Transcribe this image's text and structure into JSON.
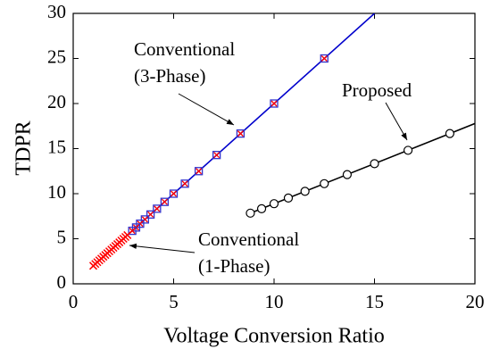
{
  "chart_data": {
    "type": "scatter",
    "xlabel": "Voltage Conversion Ratio",
    "ylabel": "TDPR",
    "xlim": [
      0,
      20
    ],
    "ylim": [
      0,
      30
    ],
    "xticks": [
      0,
      5,
      10,
      15,
      20
    ],
    "yticks": [
      0,
      5,
      10,
      15,
      20,
      25,
      30
    ],
    "series": [
      {
        "color": "#0000cc",
        "marker": "line",
        "x": [
          2.8,
          15
        ],
        "values": [
          5.6,
          30
        ]
      },
      {
        "color": "#000000",
        "marker": "line",
        "x": [
          8.8,
          20
        ],
        "values": [
          7.82,
          17.78
        ]
      },
      {
        "color": "#3333cc",
        "marker": "square-x",
        "x": [
          12.5,
          10,
          8.33,
          7.14,
          6.25,
          5.56,
          5,
          4.55,
          4.17,
          3.85,
          3.57,
          3.33,
          3.13,
          2.94
        ],
        "values": [
          25,
          20,
          16.67,
          14.29,
          12.5,
          11.11,
          10,
          9.09,
          8.33,
          7.69,
          7.14,
          6.67,
          6.25,
          5.88
        ]
      },
      {
        "color": "#ff0000",
        "marker": "x",
        "x": [
          1,
          1.1,
          1.2,
          1.3,
          1.4,
          1.5,
          1.6,
          1.7,
          1.8,
          1.9,
          2,
          2.1,
          2.2,
          2.3,
          2.4,
          2.5,
          2.6,
          2.7
        ],
        "values": [
          2,
          2.2,
          2.4,
          2.6,
          2.8,
          3,
          3.2,
          3.4,
          3.6,
          3.8,
          4,
          4.2,
          4.4,
          4.6,
          4.8,
          5,
          5.2,
          5.4
        ]
      },
      {
        "color": "#000000",
        "marker": "circle",
        "x": [
          18.75,
          16.67,
          15,
          13.64,
          12.5,
          11.54,
          10.71,
          10,
          9.38,
          8.82
        ],
        "values": [
          16.67,
          14.81,
          13.33,
          12.12,
          11.11,
          10.26,
          9.52,
          8.89,
          8.33,
          7.84
        ]
      }
    ],
    "annotations": [
      {
        "lines": [
          "Conventional",
          "(3-Phase)"
        ]
      },
      {
        "lines": [
          "Proposed"
        ]
      },
      {
        "lines": [
          "Conventional",
          "(1-Phase)"
        ]
      }
    ]
  }
}
